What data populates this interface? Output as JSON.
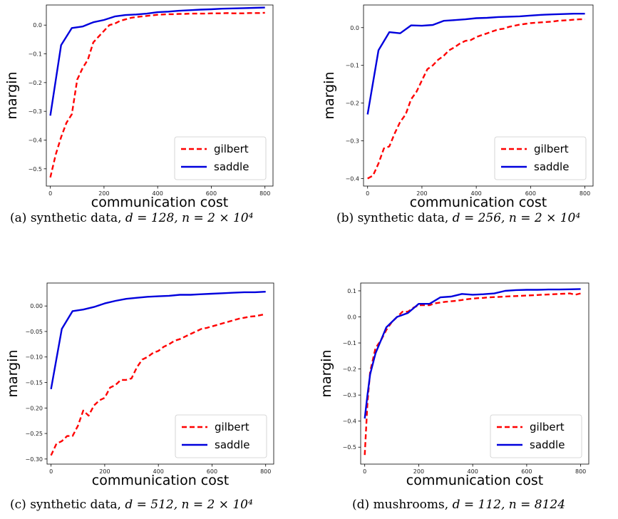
{
  "chart_data": [
    {
      "type": "line",
      "caption": {
        "label": "(a)",
        "dataset": "synthetic data,",
        "params": "d = 128, n = 2 × 10⁴"
      },
      "xlabel": "communication cost",
      "ylabel": "margin",
      "xlim": [
        -15,
        830
      ],
      "ylim": [
        -0.56,
        0.07
      ],
      "xticks": [
        0,
        200,
        400,
        600,
        800
      ],
      "yticks": [
        -0.5,
        -0.4,
        -0.3,
        -0.2,
        -0.1,
        0.0
      ],
      "ytick_labels": [
        "−0.5",
        "−0.4",
        "−0.3",
        "−0.2",
        "−0.1",
        "0.0"
      ],
      "legend": "lower-right",
      "grid": false,
      "series": [
        {
          "name": "gilbert",
          "color": "#ff0000",
          "style": "dashed",
          "x": [
            0,
            20,
            40,
            60,
            80,
            100,
            120,
            140,
            160,
            180,
            200,
            220,
            240,
            260,
            280,
            300,
            320,
            340,
            360,
            380,
            400,
            420,
            440,
            460,
            480,
            500,
            520,
            540,
            560,
            580,
            600,
            620,
            640,
            660,
            680,
            700,
            720,
            740,
            760,
            780,
            800
          ],
          "y": [
            -0.53,
            -0.45,
            -0.39,
            -0.34,
            -0.31,
            -0.19,
            -0.15,
            -0.12,
            -0.06,
            -0.04,
            -0.02,
            0.0,
            0.005,
            0.015,
            0.02,
            0.025,
            0.028,
            0.03,
            0.032,
            0.034,
            0.036,
            0.037,
            0.038,
            0.038,
            0.039,
            0.039,
            0.04,
            0.04,
            0.04,
            0.04,
            0.041,
            0.041,
            0.041,
            0.042,
            0.041,
            0.041,
            0.041,
            0.042,
            0.042,
            0.042,
            0.043
          ]
        },
        {
          "name": "saddle",
          "color": "#0000dd",
          "style": "solid",
          "x": [
            0,
            40,
            80,
            120,
            160,
            200,
            240,
            280,
            320,
            360,
            400,
            440,
            480,
            520,
            560,
            600,
            640,
            680,
            720,
            760,
            800
          ],
          "y": [
            -0.315,
            -0.07,
            -0.01,
            -0.005,
            0.01,
            0.018,
            0.03,
            0.035,
            0.037,
            0.04,
            0.045,
            0.047,
            0.05,
            0.052,
            0.054,
            0.055,
            0.057,
            0.058,
            0.059,
            0.06,
            0.061
          ]
        }
      ]
    },
    {
      "type": "line",
      "caption": {
        "label": "(b)",
        "dataset": "synthetic data,",
        "params": "d = 256, n = 2 × 10⁴"
      },
      "xlabel": "communication cost",
      "ylabel": "margin",
      "xlim": [
        -15,
        830
      ],
      "ylim": [
        -0.42,
        0.06
      ],
      "xticks": [
        0,
        200,
        400,
        600,
        800
      ],
      "yticks": [
        -0.4,
        -0.3,
        -0.2,
        -0.1,
        0.0
      ],
      "ytick_labels": [
        "−0.4",
        "−0.3",
        "−0.2",
        "−0.1",
        "0.0"
      ],
      "legend": "lower-right",
      "grid": false,
      "series": [
        {
          "name": "gilbert",
          "color": "#ff0000",
          "style": "dashed",
          "x": [
            0,
            20,
            40,
            60,
            80,
            100,
            120,
            140,
            160,
            180,
            200,
            220,
            240,
            260,
            280,
            300,
            320,
            340,
            360,
            380,
            400,
            420,
            440,
            460,
            480,
            500,
            520,
            540,
            560,
            580,
            600,
            620,
            640,
            660,
            680,
            700,
            720,
            740,
            760,
            780,
            800
          ],
          "y": [
            -0.4,
            -0.392,
            -0.36,
            -0.32,
            -0.315,
            -0.28,
            -0.25,
            -0.23,
            -0.19,
            -0.17,
            -0.14,
            -0.11,
            -0.1,
            -0.085,
            -0.075,
            -0.06,
            -0.052,
            -0.042,
            -0.035,
            -0.033,
            -0.025,
            -0.02,
            -0.015,
            -0.01,
            -0.005,
            -0.003,
            0.002,
            0.005,
            0.008,
            0.01,
            0.012,
            0.013,
            0.014,
            0.015,
            0.016,
            0.018,
            0.019,
            0.02,
            0.021,
            0.022,
            0.022
          ]
        },
        {
          "name": "saddle",
          "color": "#0000dd",
          "style": "solid",
          "x": [
            0,
            40,
            80,
            120,
            160,
            200,
            240,
            280,
            320,
            360,
            400,
            440,
            480,
            520,
            560,
            600,
            640,
            680,
            720,
            760,
            800
          ],
          "y": [
            -0.23,
            -0.06,
            -0.012,
            -0.015,
            0.006,
            0.005,
            0.007,
            0.018,
            0.02,
            0.022,
            0.025,
            0.026,
            0.028,
            0.029,
            0.03,
            0.032,
            0.034,
            0.035,
            0.036,
            0.037,
            0.037
          ]
        }
      ]
    },
    {
      "type": "line",
      "caption": {
        "label": "(c)",
        "dataset": "synthetic data,",
        "params": "d = 512, n = 2 × 10⁴"
      },
      "xlabel": "communication cost",
      "ylabel": "margin",
      "xlim": [
        -15,
        830
      ],
      "ylim": [
        -0.31,
        0.045
      ],
      "xticks": [
        0,
        200,
        400,
        600,
        800
      ],
      "yticks": [
        -0.3,
        -0.25,
        -0.2,
        -0.15,
        -0.1,
        -0.05,
        0.0
      ],
      "ytick_labels": [
        "−0.30",
        "−0.25",
        "−0.20",
        "−0.15",
        "−0.10",
        "−0.05",
        "0.00"
      ],
      "legend": "lower-right",
      "grid": false,
      "series": [
        {
          "name": "gilbert",
          "color": "#ff0000",
          "style": "dashed",
          "x": [
            0,
            20,
            40,
            60,
            80,
            100,
            120,
            140,
            160,
            180,
            200,
            220,
            240,
            260,
            280,
            300,
            320,
            340,
            360,
            380,
            400,
            420,
            440,
            460,
            480,
            500,
            520,
            540,
            560,
            580,
            600,
            620,
            640,
            660,
            680,
            700,
            720,
            740,
            760,
            780,
            800
          ],
          "y": [
            -0.293,
            -0.27,
            -0.265,
            -0.255,
            -0.255,
            -0.235,
            -0.205,
            -0.215,
            -0.195,
            -0.185,
            -0.18,
            -0.16,
            -0.155,
            -0.145,
            -0.145,
            -0.142,
            -0.12,
            -0.105,
            -0.1,
            -0.092,
            -0.088,
            -0.08,
            -0.075,
            -0.068,
            -0.065,
            -0.06,
            -0.055,
            -0.05,
            -0.045,
            -0.043,
            -0.04,
            -0.037,
            -0.034,
            -0.031,
            -0.028,
            -0.025,
            -0.023,
            -0.021,
            -0.02,
            -0.018,
            -0.016
          ]
        },
        {
          "name": "saddle",
          "color": "#0000dd",
          "style": "solid",
          "x": [
            0,
            40,
            80,
            120,
            160,
            200,
            240,
            280,
            320,
            360,
            400,
            440,
            480,
            520,
            560,
            600,
            640,
            680,
            720,
            760,
            800
          ],
          "y": [
            -0.163,
            -0.045,
            -0.01,
            -0.007,
            -0.002,
            0.005,
            0.01,
            0.014,
            0.016,
            0.018,
            0.019,
            0.02,
            0.022,
            0.022,
            0.023,
            0.024,
            0.025,
            0.026,
            0.027,
            0.027,
            0.028
          ]
        }
      ]
    },
    {
      "type": "line",
      "caption": {
        "label": "(d)",
        "dataset": "mushrooms,",
        "params": "d = 112, n = 8124"
      },
      "xlabel": "communication cost",
      "ylabel": "margin",
      "xlim": [
        -15,
        830
      ],
      "ylim": [
        -0.565,
        0.13
      ],
      "xticks": [
        0,
        200,
        400,
        600,
        800
      ],
      "yticks": [
        -0.5,
        -0.4,
        -0.3,
        -0.2,
        -0.1,
        0.0,
        0.1
      ],
      "ytick_labels": [
        "−0.5",
        "−0.4",
        "−0.3",
        "−0.2",
        "−0.1",
        "0.0",
        "0.1"
      ],
      "legend": "lower-right",
      "grid": false,
      "series": [
        {
          "name": "gilbert",
          "color": "#ff0000",
          "style": "dashed",
          "x": [
            0,
            10,
            20,
            40,
            60,
            80,
            100,
            120,
            140,
            160,
            180,
            200,
            220,
            240,
            260,
            280,
            300,
            320,
            340,
            360,
            380,
            400,
            420,
            440,
            460,
            480,
            500,
            520,
            540,
            560,
            580,
            600,
            620,
            640,
            660,
            680,
            700,
            720,
            740,
            760,
            780,
            800
          ],
          "y": [
            -0.53,
            -0.33,
            -0.21,
            -0.12,
            -0.09,
            -0.05,
            -0.02,
            0.0,
            0.02,
            0.02,
            0.035,
            0.045,
            0.045,
            0.045,
            0.052,
            0.055,
            0.058,
            0.06,
            0.062,
            0.065,
            0.068,
            0.07,
            0.072,
            0.073,
            0.075,
            0.076,
            0.077,
            0.078,
            0.079,
            0.08,
            0.081,
            0.082,
            0.083,
            0.084,
            0.085,
            0.086,
            0.087,
            0.088,
            0.089,
            0.09,
            0.085,
            0.09
          ]
        },
        {
          "name": "saddle",
          "color": "#0000dd",
          "style": "solid",
          "x": [
            0,
            10,
            20,
            40,
            60,
            80,
            100,
            120,
            160,
            200,
            240,
            280,
            320,
            360,
            400,
            440,
            480,
            520,
            560,
            600,
            640,
            680,
            720,
            760,
            800
          ],
          "y": [
            -0.39,
            -0.3,
            -0.22,
            -0.14,
            -0.09,
            -0.04,
            -0.02,
            0.0,
            0.015,
            0.05,
            0.05,
            0.075,
            0.078,
            0.088,
            0.085,
            0.087,
            0.09,
            0.1,
            0.103,
            0.104,
            0.104,
            0.105,
            0.105,
            0.106,
            0.107
          ]
        }
      ]
    }
  ]
}
